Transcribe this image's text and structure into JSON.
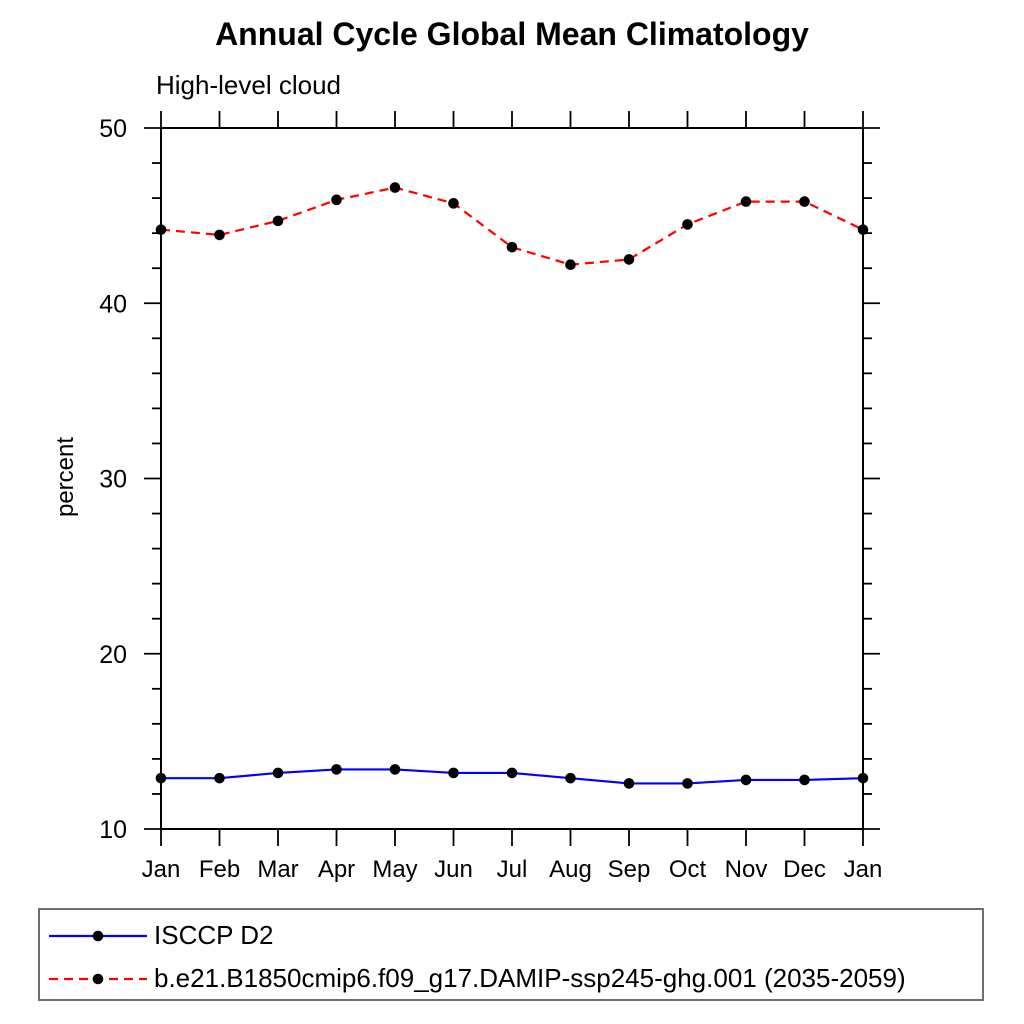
{
  "chart_data": {
    "type": "line",
    "title": "Annual Cycle Global Mean Climatology",
    "subtitle": "High-level cloud",
    "ylabel": "percent",
    "xlabel": "",
    "categories": [
      "Jan",
      "Feb",
      "Mar",
      "Apr",
      "May",
      "Jun",
      "Jul",
      "Aug",
      "Sep",
      "Oct",
      "Nov",
      "Dec",
      "Jan"
    ],
    "ylim": [
      10,
      50
    ],
    "ytick_major": [
      10,
      20,
      30,
      40,
      50
    ],
    "ytick_minor_step": 2,
    "grid": false,
    "legend_position": "bottom-left-box",
    "axis_color": "#000000",
    "marker_shape": "filled-circle",
    "series": [
      {
        "name": "ISCCP D2",
        "color": "#0000ff",
        "line_style": "solid",
        "marker_color": "#000000",
        "values": [
          12.9,
          12.9,
          13.2,
          13.4,
          13.4,
          13.2,
          13.2,
          12.9,
          12.6,
          12.6,
          12.8,
          12.8,
          12.9
        ]
      },
      {
        "name": "b.e21.B1850cmip6.f09_g17.DAMIP-ssp245-ghg.001 (2035-2059)",
        "color": "#ff0000",
        "line_style": "dashed",
        "marker_color": "#000000",
        "values": [
          44.2,
          43.9,
          44.7,
          45.9,
          46.6,
          45.7,
          43.2,
          42.2,
          42.5,
          44.5,
          45.8,
          45.8,
          44.2
        ]
      }
    ]
  }
}
